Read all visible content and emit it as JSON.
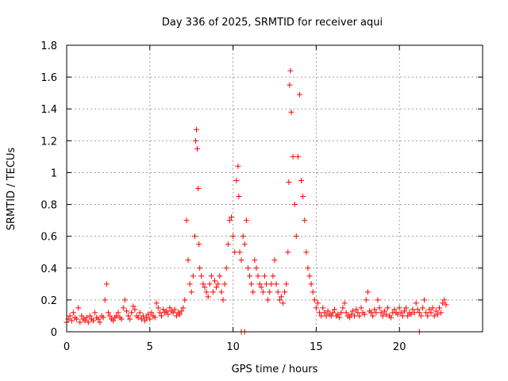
{
  "chart_data": {
    "type": "scatter",
    "title": "Day 336 of 2025, SRMTID for receiver aqui",
    "xlabel": "GPS time / hours",
    "ylabel": "SRMTID / TECUs",
    "xlim": [
      0,
      25
    ],
    "ylim": [
      0,
      1.8
    ],
    "xticks": [
      0,
      5,
      10,
      15,
      20
    ],
    "xtick_labels": [
      "0",
      "5",
      "10",
      "15",
      "20"
    ],
    "yticks": [
      0,
      0.2,
      0.4,
      0.6,
      0.8,
      1.0,
      1.2,
      1.4,
      1.6,
      1.8
    ],
    "ytick_labels": [
      "0",
      "0.2",
      "0.4",
      "0.6",
      "0.8",
      "1",
      "1.2",
      "1.4",
      "1.6",
      "1.8"
    ],
    "grid": true,
    "marker": "+",
    "series": [
      {
        "name": "SRMTID",
        "color": "#ff0000",
        "x": [
          0.0,
          0.1,
          0.2,
          0.3,
          0.4,
          0.5,
          0.6,
          0.7,
          0.8,
          0.9,
          1.0,
          1.1,
          1.2,
          1.3,
          1.4,
          1.5,
          1.6,
          1.7,
          1.8,
          1.9,
          2.0,
          2.1,
          2.2,
          2.3,
          2.4,
          2.5,
          2.6,
          2.7,
          2.8,
          2.9,
          3.0,
          3.1,
          3.2,
          3.3,
          3.4,
          3.5,
          3.6,
          3.7,
          3.8,
          3.9,
          4.0,
          4.1,
          4.2,
          4.3,
          4.4,
          4.5,
          4.6,
          4.7,
          4.8,
          4.9,
          5.0,
          5.1,
          5.2,
          5.3,
          5.4,
          5.5,
          5.6,
          5.7,
          5.8,
          5.9,
          6.0,
          6.1,
          6.2,
          6.3,
          6.4,
          6.5,
          6.6,
          6.7,
          6.8,
          6.9,
          7.0,
          7.1,
          7.2,
          7.3,
          7.4,
          7.5,
          7.6,
          7.7,
          7.75,
          7.8,
          7.85,
          7.9,
          7.95,
          8.0,
          8.1,
          8.2,
          8.3,
          8.4,
          8.5,
          8.6,
          8.7,
          8.8,
          8.9,
          9.0,
          9.1,
          9.2,
          9.3,
          9.4,
          9.5,
          9.6,
          9.7,
          9.8,
          9.9,
          10.0,
          10.1,
          10.2,
          10.3,
          10.35,
          10.4,
          10.5,
          10.6,
          10.7,
          10.8,
          10.9,
          11.0,
          11.1,
          11.2,
          11.3,
          11.4,
          11.5,
          11.6,
          11.7,
          11.8,
          11.9,
          12.0,
          12.1,
          12.2,
          12.3,
          12.4,
          12.5,
          12.6,
          12.7,
          12.8,
          12.9,
          13.0,
          13.1,
          13.2,
          13.3,
          13.35,
          13.4,
          13.45,
          13.5,
          13.6,
          13.7,
          13.8,
          13.9,
          14.0,
          14.1,
          14.2,
          14.3,
          14.4,
          14.5,
          14.6,
          14.7,
          14.8,
          14.9,
          15.0,
          15.1,
          15.2,
          15.3,
          15.4,
          15.5,
          15.6,
          15.7,
          15.8,
          15.9,
          16.0,
          16.1,
          16.2,
          16.3,
          16.4,
          16.5,
          16.6,
          16.7,
          16.8,
          16.9,
          17.0,
          17.1,
          17.2,
          17.3,
          17.4,
          17.5,
          17.6,
          17.7,
          17.8,
          17.9,
          18.0,
          18.1,
          18.2,
          18.3,
          18.4,
          18.5,
          18.6,
          18.7,
          18.8,
          18.9,
          19.0,
          19.1,
          19.2,
          19.3,
          19.4,
          19.5,
          19.6,
          19.7,
          19.8,
          19.9,
          20.0,
          20.1,
          20.2,
          20.3,
          20.4,
          20.5,
          20.6,
          20.7,
          20.8,
          20.9,
          21.0,
          21.1,
          21.2,
          21.3,
          21.4,
          21.5,
          21.6,
          21.7,
          21.8,
          21.9,
          22.0,
          22.1,
          22.2,
          22.3,
          22.4,
          22.5,
          22.6,
          22.7,
          22.8,
          10.5,
          10.7,
          21.2
        ],
        "y": [
          0.06,
          0.08,
          0.1,
          0.07,
          0.12,
          0.09,
          0.08,
          0.15,
          0.06,
          0.1,
          0.08,
          0.07,
          0.09,
          0.06,
          0.1,
          0.08,
          0.07,
          0.12,
          0.09,
          0.08,
          0.06,
          0.1,
          0.09,
          0.2,
          0.3,
          0.12,
          0.1,
          0.08,
          0.07,
          0.09,
          0.1,
          0.12,
          0.09,
          0.08,
          0.15,
          0.2,
          0.13,
          0.1,
          0.08,
          0.12,
          0.16,
          0.14,
          0.1,
          0.09,
          0.12,
          0.08,
          0.1,
          0.07,
          0.09,
          0.11,
          0.08,
          0.12,
          0.1,
          0.09,
          0.18,
          0.15,
          0.12,
          0.1,
          0.14,
          0.12,
          0.13,
          0.11,
          0.15,
          0.13,
          0.12,
          0.14,
          0.1,
          0.12,
          0.11,
          0.13,
          0.15,
          0.2,
          0.7,
          0.45,
          0.3,
          0.25,
          0.35,
          0.6,
          1.2,
          1.27,
          1.15,
          0.9,
          0.55,
          0.4,
          0.35,
          0.3,
          0.28,
          0.25,
          0.22,
          0.3,
          0.35,
          0.25,
          0.32,
          0.28,
          0.3,
          0.35,
          0.25,
          0.2,
          0.3,
          0.4,
          0.55,
          0.7,
          0.72,
          0.6,
          0.5,
          0.95,
          1.04,
          0.85,
          0.5,
          0.45,
          0.6,
          0.55,
          0.7,
          0.4,
          0.35,
          0.3,
          0.25,
          0.45,
          0.4,
          0.35,
          0.3,
          0.28,
          0.25,
          0.35,
          0.3,
          0.2,
          0.25,
          0.3,
          0.35,
          0.45,
          0.3,
          0.25,
          0.2,
          0.22,
          0.18,
          0.25,
          0.3,
          0.5,
          0.94,
          1.55,
          1.64,
          1.38,
          1.1,
          0.8,
          0.6,
          1.1,
          1.49,
          0.95,
          0.85,
          0.7,
          0.5,
          0.4,
          0.35,
          0.3,
          0.25,
          0.2,
          0.15,
          0.18,
          0.12,
          0.1,
          0.15,
          0.12,
          0.1,
          0.13,
          0.11,
          0.1,
          0.12,
          0.14,
          0.1,
          0.11,
          0.09,
          0.12,
          0.15,
          0.18,
          0.12,
          0.1,
          0.09,
          0.11,
          0.13,
          0.1,
          0.14,
          0.12,
          0.1,
          0.15,
          0.12,
          0.11,
          0.2,
          0.25,
          0.13,
          0.12,
          0.1,
          0.14,
          0.12,
          0.2,
          0.15,
          0.12,
          0.1,
          0.13,
          0.11,
          0.15,
          0.1,
          0.09,
          0.12,
          0.14,
          0.12,
          0.11,
          0.15,
          0.12,
          0.1,
          0.13,
          0.15,
          0.1,
          0.12,
          0.11,
          0.14,
          0.12,
          0.18,
          0.14,
          0.12,
          0.1,
          0.15,
          0.2,
          0.12,
          0.1,
          0.14,
          0.12,
          0.15,
          0.1,
          0.13,
          0.11,
          0.15,
          0.12,
          0.18,
          0.2,
          0.17,
          0.0,
          0.0,
          0.0
        ]
      }
    ]
  }
}
